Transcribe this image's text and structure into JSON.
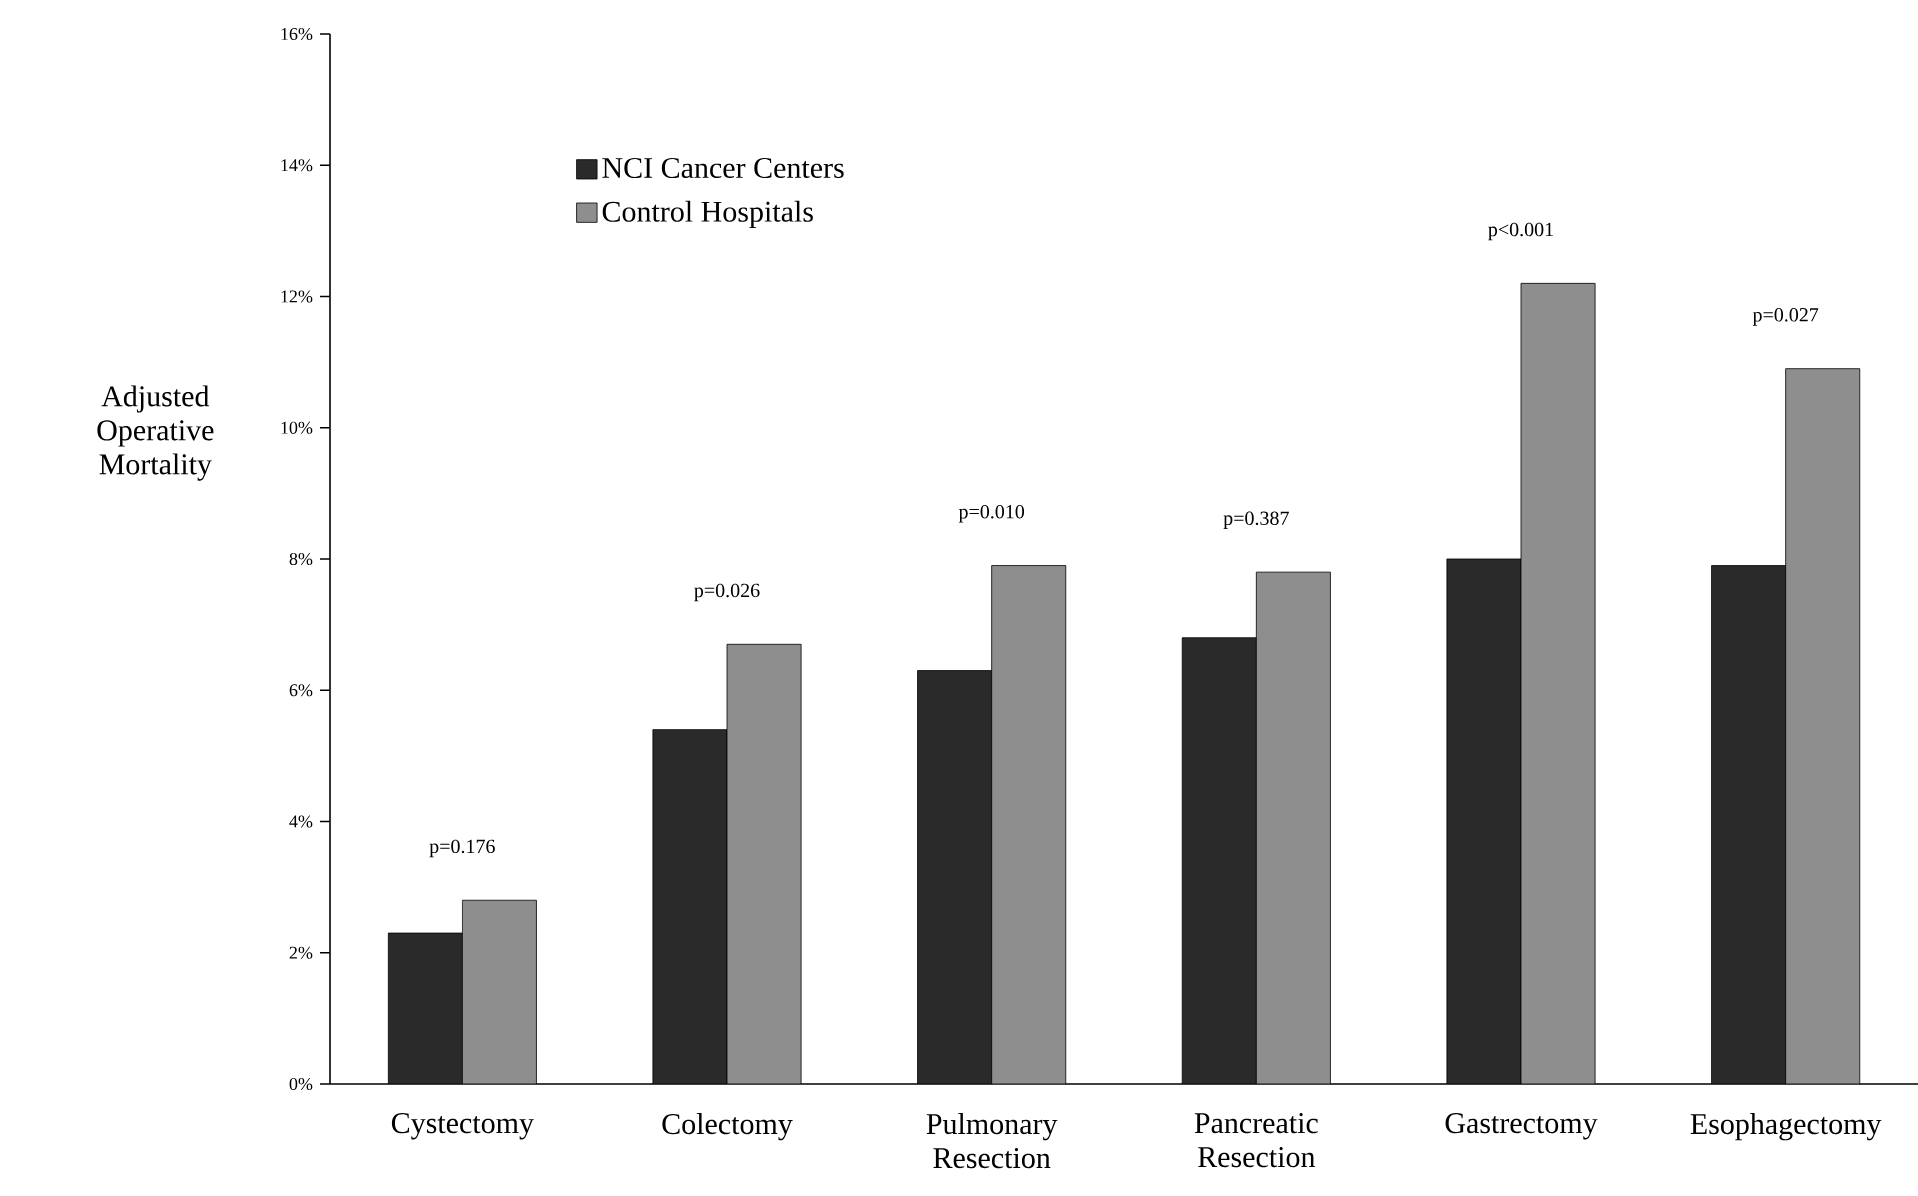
{
  "chart_data": {
    "type": "bar",
    "ylabel": "Adjusted Operative Mortality",
    "categories": [
      "Cystectomy",
      "Colectomy",
      "Pulmonary Resection",
      "Pancreatic Resection",
      "Gastrectomy",
      "Esophagectomy"
    ],
    "series": [
      {
        "name": "NCI Cancer Centers",
        "color": "#2a2a2a",
        "values": [
          2.3,
          5.4,
          6.3,
          6.8,
          8.0,
          7.9
        ]
      },
      {
        "name": "Control Hospitals",
        "color": "#8e8e8e",
        "values": [
          2.8,
          6.7,
          7.9,
          7.8,
          12.2,
          10.9
        ]
      }
    ],
    "ylim": [
      0,
      16
    ],
    "yticks": [
      {
        "value": 0,
        "label": "0%"
      },
      {
        "value": 2,
        "label": "2%"
      },
      {
        "value": 4,
        "label": "4%"
      },
      {
        "value": 6,
        "label": "6%"
      },
      {
        "value": 8,
        "label": "8%"
      },
      {
        "value": 10,
        "label": "10%"
      },
      {
        "value": 12,
        "label": "12%"
      },
      {
        "value": 14,
        "label": "14%"
      },
      {
        "value": 16,
        "label": "16%"
      }
    ],
    "annotations": [
      "p=0.176",
      "p=0.026",
      "p=0.010",
      "p=0.387",
      "p<0.001",
      "p=0.027"
    ],
    "grid": false,
    "legend": "top left"
  }
}
